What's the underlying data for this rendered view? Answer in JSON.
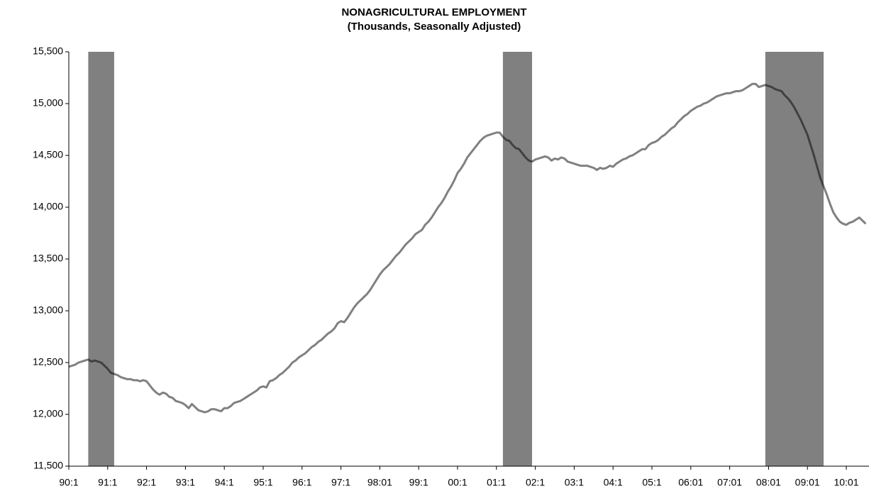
{
  "chart_data": {
    "type": "line",
    "title": "NONAGRICULTURAL EMPLOYMENT",
    "subtitle": "(Thousands, Seasonally Adjusted)",
    "categories": [
      "90:1",
      null,
      null,
      null,
      null,
      null,
      null,
      null,
      null,
      null,
      null,
      null,
      "91:1",
      null,
      null,
      null,
      null,
      null,
      null,
      null,
      null,
      null,
      null,
      null,
      "92:1",
      null,
      null,
      null,
      null,
      null,
      null,
      null,
      null,
      null,
      null,
      null,
      "93:1",
      null,
      null,
      null,
      null,
      null,
      null,
      null,
      null,
      null,
      null,
      null,
      "94:1",
      null,
      null,
      null,
      null,
      null,
      null,
      null,
      null,
      null,
      null,
      null,
      "95:1",
      null,
      null,
      null,
      null,
      null,
      null,
      null,
      null,
      null,
      null,
      null,
      "96:1",
      null,
      null,
      null,
      null,
      null,
      null,
      null,
      null,
      null,
      null,
      null,
      "97:1",
      null,
      null,
      null,
      null,
      null,
      null,
      null,
      null,
      null,
      null,
      null,
      "98:01",
      null,
      null,
      null,
      null,
      null,
      null,
      null,
      null,
      null,
      null,
      null,
      "99:1",
      null,
      null,
      null,
      null,
      null,
      null,
      null,
      null,
      null,
      null,
      null,
      "00:1",
      null,
      null,
      null,
      null,
      null,
      null,
      null,
      null,
      null,
      null,
      null,
      "01:1",
      null,
      null,
      null,
      null,
      null,
      null,
      null,
      null,
      null,
      null,
      null,
      "02:1",
      null,
      null,
      null,
      null,
      null,
      null,
      null,
      null,
      null,
      null,
      null,
      "03:1",
      null,
      null,
      null,
      null,
      null,
      null,
      null,
      null,
      null,
      null,
      null,
      "04:1",
      null,
      null,
      null,
      null,
      null,
      null,
      null,
      null,
      null,
      null,
      null,
      "05:1",
      null,
      null,
      null,
      null,
      null,
      null,
      null,
      null,
      null,
      null,
      null,
      "06:01",
      null,
      null,
      null,
      null,
      null,
      null,
      null,
      null,
      null,
      null,
      null,
      "07:01",
      null,
      null,
      null,
      null,
      null,
      null,
      null,
      null,
      null,
      null,
      null,
      "08:01",
      null,
      null,
      null,
      null,
      null,
      null,
      null,
      null,
      null,
      null,
      null,
      "09:01",
      null,
      null,
      null,
      null,
      null,
      null,
      null,
      null,
      null,
      null,
      null,
      "10:01",
      null,
      null,
      null,
      null,
      null,
      null
    ],
    "series": [
      {
        "name": "Nonagricultural employment",
        "color": "#808080",
        "values": [
          12460,
          12470,
          12480,
          12500,
          12510,
          12520,
          12530,
          12510,
          12520,
          12510,
          12500,
          12470,
          12440,
          12400,
          12390,
          12380,
          12360,
          12350,
          12340,
          12340,
          12330,
          12330,
          12320,
          12330,
          12320,
          12280,
          12240,
          12210,
          12190,
          12210,
          12200,
          12170,
          12160,
          12130,
          12120,
          12110,
          12090,
          12060,
          12100,
          12070,
          12040,
          12030,
          12020,
          12030,
          12050,
          12050,
          12040,
          12030,
          12060,
          12060,
          12080,
          12110,
          12120,
          12130,
          12150,
          12170,
          12190,
          12210,
          12230,
          12260,
          12270,
          12260,
          12320,
          12330,
          12350,
          12380,
          12400,
          12430,
          12460,
          12500,
          12520,
          12550,
          12570,
          12590,
          12620,
          12650,
          12670,
          12700,
          12720,
          12750,
          12780,
          12800,
          12830,
          12880,
          12900,
          12890,
          12930,
          12980,
          13030,
          13070,
          13100,
          13130,
          13160,
          13200,
          13250,
          13300,
          13350,
          13390,
          13420,
          13450,
          13490,
          13530,
          13560,
          13600,
          13640,
          13670,
          13700,
          13740,
          13760,
          13780,
          13830,
          13860,
          13900,
          13950,
          14000,
          14040,
          14090,
          14150,
          14200,
          14260,
          14330,
          14370,
          14420,
          14480,
          14520,
          14560,
          14600,
          14640,
          14670,
          14690,
          14700,
          14710,
          14720,
          14720,
          14680,
          14650,
          14640,
          14600,
          14570,
          14560,
          14520,
          14480,
          14450,
          14440,
          14460,
          14470,
          14480,
          14490,
          14480,
          14450,
          14470,
          14460,
          14480,
          14470,
          14440,
          14430,
          14420,
          14410,
          14400,
          14400,
          14400,
          14390,
          14380,
          14360,
          14380,
          14370,
          14380,
          14400,
          14390,
          14420,
          14440,
          14460,
          14470,
          14490,
          14500,
          14520,
          14540,
          14560,
          14560,
          14600,
          14620,
          14630,
          14650,
          14680,
          14700,
          14730,
          14760,
          14780,
          14820,
          14850,
          14880,
          14900,
          14930,
          14950,
          14970,
          14980,
          15000,
          15010,
          15030,
          15050,
          15070,
          15080,
          15090,
          15100,
          15100,
          15110,
          15120,
          15120,
          15130,
          15150,
          15170,
          15190,
          15190,
          15160,
          15170,
          15180,
          15170,
          15160,
          15140,
          15130,
          15120,
          15080,
          15050,
          15010,
          14960,
          14900,
          14840,
          14770,
          14700,
          14600,
          14500,
          14390,
          14280,
          14200,
          14120,
          14030,
          13950,
          13900,
          13860,
          13840,
          13830,
          13850,
          13860,
          13880,
          13900,
          13870,
          13840
        ]
      }
    ],
    "recessions": [
      [
        6,
        14
      ],
      [
        134,
        143
      ],
      [
        215,
        233
      ]
    ],
    "recession_color": "#808080",
    "ylim": [
      11500,
      15500
    ],
    "yticks": [
      {
        "value": 11500,
        "label": "11,500"
      },
      {
        "value": 12000,
        "label": "12,000"
      },
      {
        "value": 12500,
        "label": "12,500"
      },
      {
        "value": 13000,
        "label": "13,000"
      },
      {
        "value": 13500,
        "label": "13,500"
      },
      {
        "value": 14000,
        "label": "14,000"
      },
      {
        "value": 14500,
        "label": "14,500"
      },
      {
        "value": 15000,
        "label": "15,000"
      },
      {
        "value": 15500,
        "label": "15,500"
      }
    ],
    "grid": false
  }
}
